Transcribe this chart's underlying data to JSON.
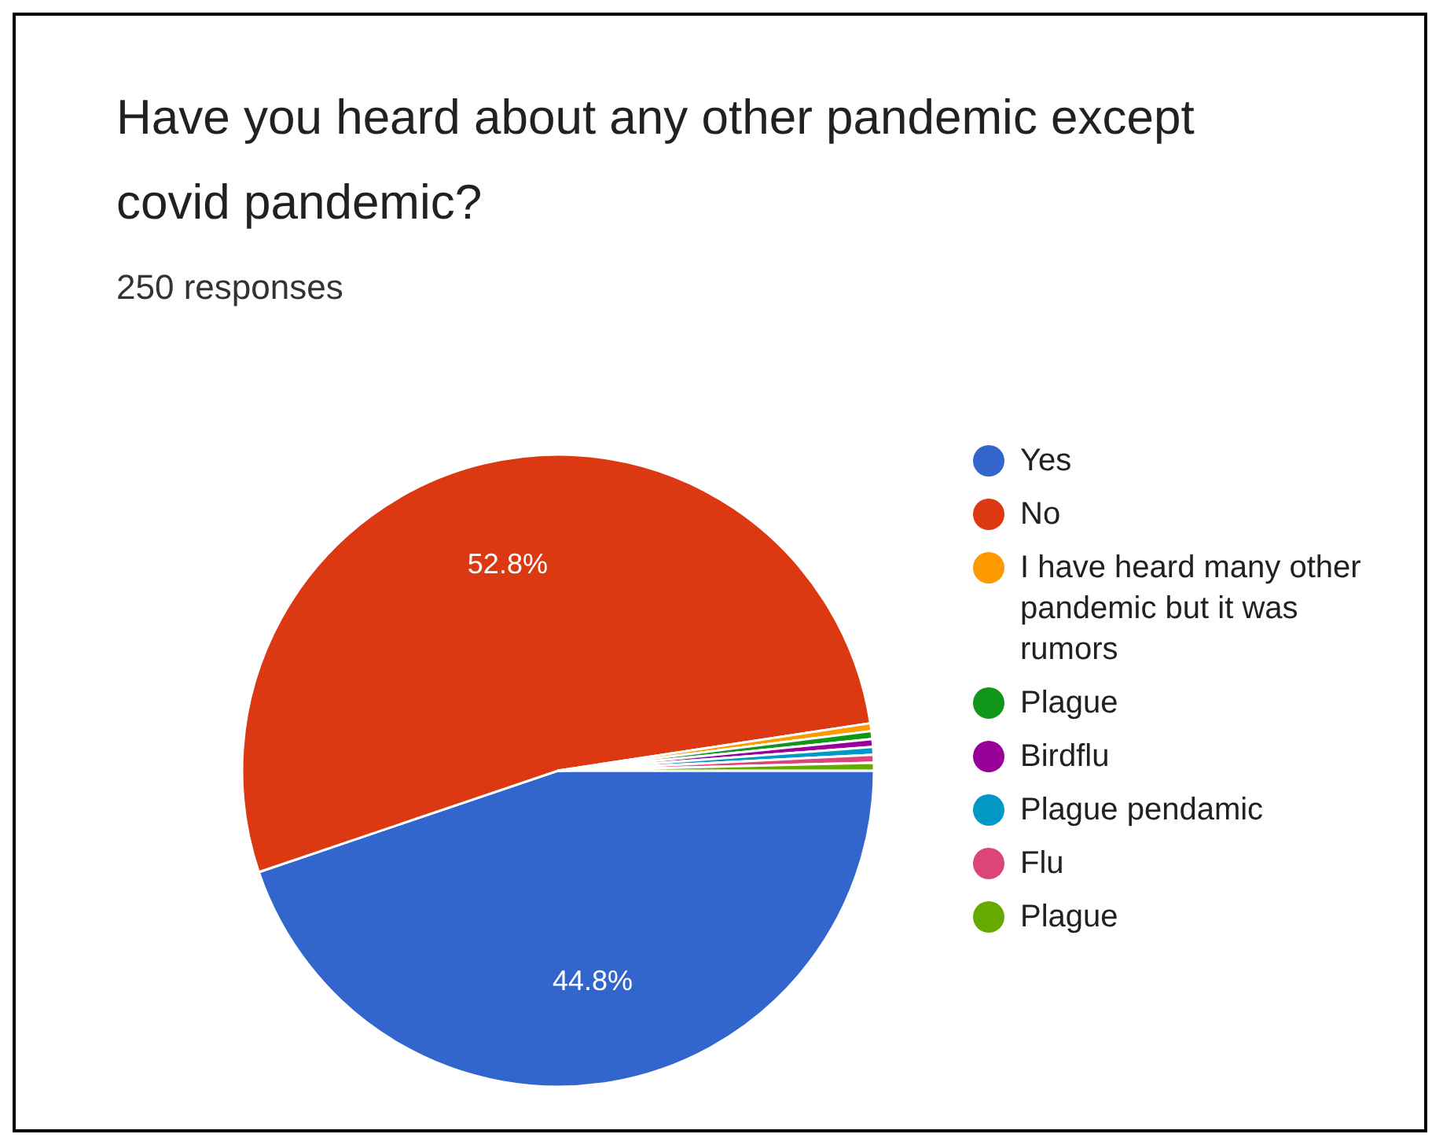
{
  "chart_data": {
    "type": "pie",
    "title": "Have you heard about any other pandemic except covid pandemic?",
    "subtitle": "250 responses",
    "categories": [
      "Yes",
      "No",
      "I have heard many other pandemic but it was rumors",
      "Plague",
      "Birdflu",
      "Plague pendamic",
      "Flu",
      "Plague"
    ],
    "values": [
      44.8,
      52.8,
      0.4,
      0.4,
      0.4,
      0.4,
      0.4,
      0.4
    ],
    "colors": [
      "#3366cc",
      "#dc3912",
      "#ff9900",
      "#109618",
      "#990099",
      "#0099c6",
      "#dd4477",
      "#66aa00"
    ],
    "value_labels": [
      "44.8%",
      "52.8%",
      null,
      null,
      null,
      null,
      null,
      null
    ],
    "legend": "right"
  }
}
